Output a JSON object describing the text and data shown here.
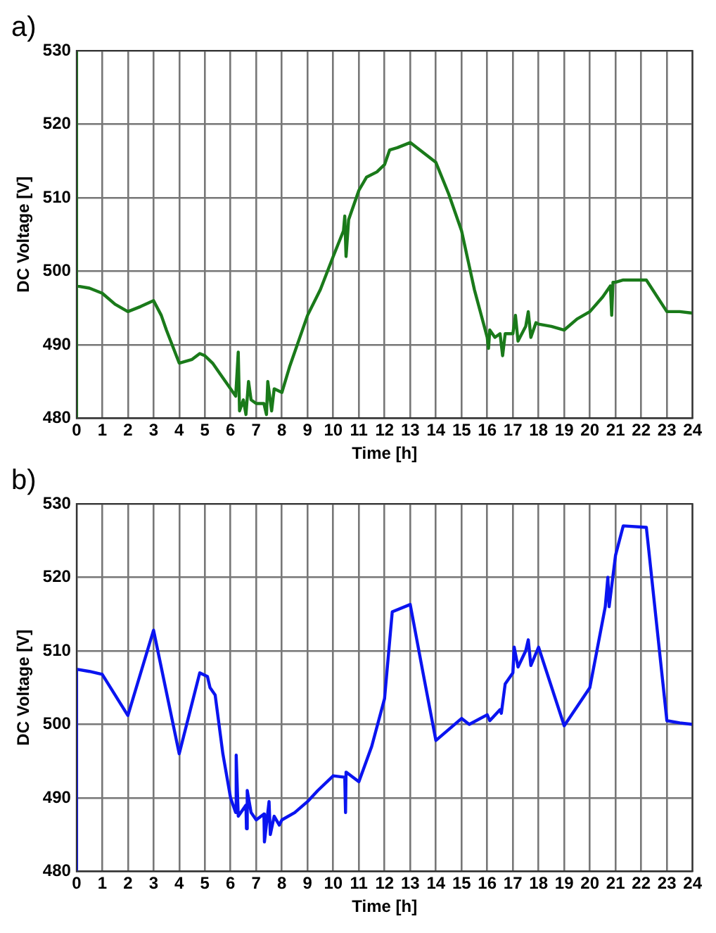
{
  "chart_data": [
    {
      "type": "line",
      "title": "a)",
      "xlabel": "Time [h]",
      "ylabel": "DC Voltage [V]",
      "xlim": [
        0,
        24
      ],
      "xticks": [
        0,
        1,
        2,
        3,
        4,
        5,
        6,
        7,
        8,
        9,
        10,
        11,
        12,
        13,
        14,
        15,
        16,
        17,
        18,
        19,
        20,
        21,
        22,
        23,
        24
      ],
      "ylim": [
        480,
        530
      ],
      "yticks": [
        480,
        490,
        500,
        510,
        520,
        530
      ],
      "grid": true,
      "legend": false,
      "marker": "none",
      "line_style": "solid",
      "series": [
        {
          "color": "#1a7a1a",
          "x": [
            0,
            0,
            0,
            0.5,
            1,
            1.5,
            2,
            2.5,
            3,
            3.3,
            3.5,
            4,
            4.5,
            4.8,
            5,
            5.3,
            5.6,
            6,
            6.2,
            6.3,
            6.35,
            6.5,
            6.6,
            6.7,
            6.8,
            7,
            7.3,
            7.4,
            7.45,
            7.6,
            7.7,
            8,
            8.3,
            9,
            9.5,
            10,
            10.4,
            10.45,
            10.5,
            10.6,
            11,
            11.3,
            11.7,
            12,
            12.2,
            12.5,
            13,
            14,
            14.5,
            15,
            15.5,
            16,
            16.05,
            16.1,
            16.3,
            16.5,
            16.6,
            16.7,
            17,
            17.1,
            17.2,
            17.5,
            17.6,
            17.7,
            17.9,
            18,
            18.5,
            19,
            19.5,
            20,
            20.5,
            20.8,
            20.85,
            20.9,
            21,
            21.3,
            22,
            22.2,
            23,
            23.5,
            24
          ],
          "values": [
            480,
            530,
            498,
            497.7,
            497,
            495.5,
            494.5,
            495.2,
            496,
            494,
            492,
            487.5,
            488,
            488.8,
            488.5,
            487.5,
            486,
            484,
            483,
            489,
            481,
            482.5,
            480.5,
            485,
            482.5,
            482,
            482,
            480.5,
            485,
            481,
            484,
            483.5,
            487,
            494,
            497.5,
            502,
            505.5,
            507.5,
            502,
            507,
            511,
            512.8,
            513.5,
            514.5,
            516.5,
            516.8,
            517.5,
            514.8,
            510.5,
            505.5,
            497.5,
            491,
            489.5,
            492,
            491,
            491.5,
            488.5,
            491.5,
            491.5,
            494,
            490.5,
            492.5,
            494.5,
            491,
            493,
            492.8,
            492.5,
            492,
            493.5,
            494.5,
            496.5,
            498,
            494,
            498.5,
            498.5,
            498.8,
            498.8,
            498.8,
            494.5,
            494.5,
            494.3
          ]
        }
      ]
    },
    {
      "type": "line",
      "title": "b)",
      "xlabel": "Time [h]",
      "ylabel": "DC Voltage [V]",
      "xlim": [
        0,
        24
      ],
      "xticks": [
        0,
        1,
        2,
        3,
        4,
        5,
        6,
        7,
        8,
        9,
        10,
        11,
        12,
        13,
        14,
        15,
        16,
        17,
        18,
        19,
        20,
        21,
        22,
        23,
        24
      ],
      "ylim": [
        480,
        530
      ],
      "yticks": [
        480,
        490,
        500,
        510,
        520,
        530
      ],
      "grid": true,
      "legend": false,
      "marker": "none",
      "line_style": "solid",
      "series": [
        {
          "color": "#0a14f0",
          "x": [
            0,
            0,
            0.5,
            1,
            2,
            3,
            4,
            4.8,
            5.1,
            5.2,
            5.4,
            5.7,
            6,
            6.2,
            6.22,
            6.3,
            6.6,
            6.62,
            6.65,
            6.8,
            7,
            7.3,
            7.32,
            7.5,
            7.55,
            7.7,
            7.9,
            8,
            8.5,
            9,
            9.4,
            10,
            10.45,
            10.48,
            10.5,
            11,
            11.5,
            12,
            12.3,
            13,
            13.5,
            14,
            15,
            15.3,
            16,
            16.1,
            16.5,
            16.55,
            16.7,
            17,
            17.05,
            17.2,
            17.5,
            17.6,
            17.7,
            18,
            19,
            20,
            20.6,
            20.7,
            20.75,
            21,
            21.3,
            22.2,
            23,
            23.5,
            24
          ],
          "values": [
            480,
            507.5,
            507.2,
            506.8,
            501.2,
            512.8,
            496,
            507,
            506.5,
            505,
            504,
            496,
            490,
            488,
            495.8,
            487.5,
            489,
            485.8,
            491,
            488,
            487,
            487.8,
            484,
            489.5,
            485,
            487.5,
            486.3,
            487,
            488,
            489.5,
            491,
            493,
            492.8,
            488,
            493.5,
            492.2,
            497,
            503.5,
            515.3,
            516.3,
            507,
            497.8,
            500.8,
            500,
            501.3,
            500.5,
            502,
            501.5,
            505.5,
            507,
            510.5,
            507.8,
            510,
            511.5,
            508,
            510.5,
            499.8,
            505,
            516,
            520,
            516,
            523,
            527,
            526.8,
            500.5,
            500.2,
            500
          ]
        }
      ]
    }
  ]
}
